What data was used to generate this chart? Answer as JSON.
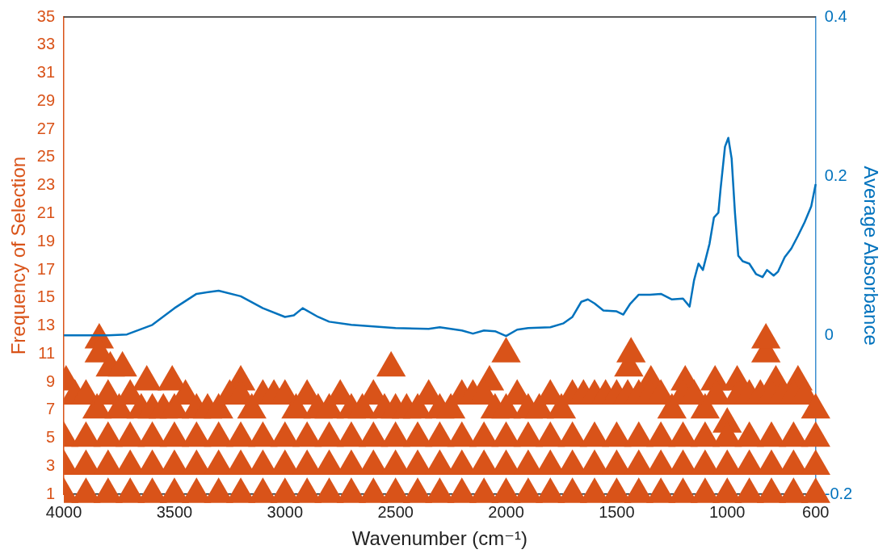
{
  "chart_data": {
    "type": "scatter",
    "xlabel": "Wavenumber (cm⁻¹)",
    "ylabel": "Frequency of Selection",
    "y2label": "Average Absorbance",
    "marker": "triangle",
    "grid": false,
    "legend": false,
    "xlim": [
      4000,
      600
    ],
    "xticks": [
      4000,
      3500,
      3000,
      2500,
      2000,
      1500,
      1000,
      600
    ],
    "ylim": [
      1,
      35
    ],
    "yticks": [
      1,
      3,
      5,
      7,
      9,
      11,
      13,
      15,
      17,
      19,
      21,
      23,
      25,
      27,
      29,
      31,
      33,
      35
    ],
    "y2lim": [
      -0.2,
      0.4
    ],
    "y2ticks": [
      -0.2,
      0,
      0.2,
      0.4
    ],
    "series": [
      {
        "type": "scatter",
        "color": "#d95319",
        "x": [
          4000,
          3900,
          3800,
          3700,
          3600,
          3500,
          3400,
          3300,
          3200,
          3100,
          3000,
          2900,
          2800,
          2700,
          2600,
          2500,
          2400,
          2300,
          2200,
          2100,
          2000,
          1900,
          1800,
          1700,
          1600,
          1500,
          1400,
          1300,
          1200,
          1100,
          1000,
          900,
          800,
          700,
          600
        ],
        "values": [
          1,
          1,
          1,
          1,
          1,
          1,
          1,
          1,
          1,
          1,
          1,
          1,
          1,
          1,
          1,
          1,
          1,
          1,
          1,
          1,
          1,
          1,
          1,
          1,
          1,
          1,
          1,
          1,
          1,
          1,
          1,
          1,
          1,
          1,
          1
        ]
      },
      {
        "type": "scatter",
        "color": "#d95319",
        "x": [
          4000,
          3900,
          3800,
          3700,
          3600,
          3500,
          3400,
          3300,
          3200,
          3100,
          3000,
          2900,
          2800,
          2700,
          2600,
          2500,
          2400,
          2300,
          2200,
          2100,
          2000,
          1900,
          1800,
          1700,
          1600,
          1500,
          1400,
          1300,
          1200,
          1100,
          1000,
          900,
          800,
          700,
          600
        ],
        "values": [
          3,
          3,
          3,
          3,
          3,
          3,
          3,
          3,
          3,
          3,
          3,
          3,
          3,
          3,
          3,
          3,
          3,
          3,
          3,
          3,
          3,
          3,
          3,
          3,
          3,
          3,
          3,
          3,
          3,
          3,
          3,
          3,
          3,
          3,
          3
        ]
      },
      {
        "type": "scatter",
        "color": "#d95319",
        "x": [
          4000,
          3900,
          3800,
          3700,
          3600,
          3500,
          3400,
          3300,
          3200,
          3100,
          3000,
          2900,
          2800,
          2700,
          2600,
          2500,
          2400,
          2300,
          2200,
          2100,
          2000,
          1900,
          1800,
          1700,
          1600,
          1500,
          1400,
          1300,
          1200,
          1100,
          1000,
          900,
          800,
          700,
          600
        ],
        "values": [
          5,
          5,
          5,
          5,
          5,
          5,
          5,
          5,
          5,
          5,
          5,
          5,
          5,
          5,
          5,
          5,
          5,
          5,
          5,
          5,
          5,
          5,
          5,
          5,
          5,
          5,
          5,
          5,
          5,
          5,
          5,
          5,
          5,
          5,
          5
        ]
      },
      {
        "color": "#d95319",
        "x": [
          3950,
          3900,
          3850,
          3800,
          3750,
          3700,
          3650,
          3600,
          3550,
          3500,
          3450,
          3400,
          3350,
          3300,
          3250,
          3200,
          3150,
          3100,
          3050,
          3000,
          2950,
          2900,
          2850,
          2800,
          2750,
          2700,
          2650,
          2600,
          2550,
          2500,
          2450,
          2400,
          2350,
          2300,
          2250,
          2200,
          2150,
          2100,
          2050,
          2000,
          1950,
          1900,
          1850,
          1800,
          1750,
          1700,
          1650,
          1600,
          1550,
          1500,
          1450,
          1400,
          1350,
          1300,
          1250,
          1200,
          1150,
          1100,
          1050,
          1000,
          950,
          900,
          850,
          800,
          750,
          700,
          650,
          600
        ],
        "values": [
          8,
          8,
          7,
          8,
          7,
          8,
          7,
          7,
          7,
          7,
          8,
          7,
          7,
          7,
          8,
          8,
          7,
          8,
          8,
          8,
          7,
          8,
          7,
          7,
          8,
          7,
          7,
          8,
          7,
          7,
          7,
          7,
          8,
          7,
          7,
          8,
          8,
          8,
          7,
          7,
          8,
          7,
          7,
          8,
          7,
          8,
          8,
          8,
          8,
          8,
          8,
          8,
          8,
          8,
          7,
          8,
          8,
          7,
          8,
          6,
          8,
          8,
          8,
          8,
          8,
          8,
          8,
          7
        ]
      },
      {
        "color": "#d95319",
        "x": [
          3990,
          3840,
          3840,
          3790,
          3735,
          3625,
          3510,
          3200,
          2520,
          2075,
          2000,
          1445,
          1435,
          1345,
          1190,
          1055,
          955,
          825,
          825,
          780,
          680
        ],
        "values": [
          9,
          12,
          11,
          10,
          10,
          9,
          9,
          9,
          10,
          9,
          11,
          10,
          11,
          9,
          9,
          9,
          9,
          11,
          12,
          9,
          9
        ]
      },
      {
        "type": "line",
        "axis": "y2",
        "color": "#0072bd",
        "marker": "none",
        "x": [
          4000,
          3800,
          3715,
          3600,
          3500,
          3400,
          3300,
          3200,
          3100,
          3000,
          2960,
          2920,
          2850,
          2800,
          2700,
          2500,
          2350,
          2300,
          2200,
          2150,
          2100,
          2050,
          2000,
          1950,
          1900,
          1800,
          1740,
          1700,
          1660,
          1630,
          1600,
          1560,
          1500,
          1470,
          1440,
          1400,
          1350,
          1300,
          1250,
          1200,
          1170,
          1150,
          1130,
          1110,
          1080,
          1060,
          1040,
          1030,
          1010,
          995,
          980,
          965,
          950,
          930,
          900,
          870,
          840,
          820,
          790,
          770,
          740,
          710,
          680,
          650,
          620,
          600
        ],
        "values": [
          0,
          0,
          0.001,
          0.013,
          0.034,
          0.052,
          0.056,
          0.049,
          0.034,
          0.023,
          0.025,
          0.034,
          0.023,
          0.017,
          0.013,
          0.009,
          0.008,
          0.01,
          0.006,
          0.002,
          0.006,
          0.005,
          -0.001,
          0.007,
          0.009,
          0.01,
          0.015,
          0.023,
          0.042,
          0.045,
          0.04,
          0.031,
          0.03,
          0.026,
          0.039,
          0.051,
          0.051,
          0.052,
          0.045,
          0.046,
          0.036,
          0.069,
          0.09,
          0.082,
          0.115,
          0.148,
          0.154,
          0.184,
          0.237,
          0.248,
          0.222,
          0.154,
          0.1,
          0.093,
          0.09,
          0.077,
          0.073,
          0.082,
          0.075,
          0.08,
          0.098,
          0.109,
          0.125,
          0.142,
          0.162,
          0.19
        ]
      }
    ]
  }
}
